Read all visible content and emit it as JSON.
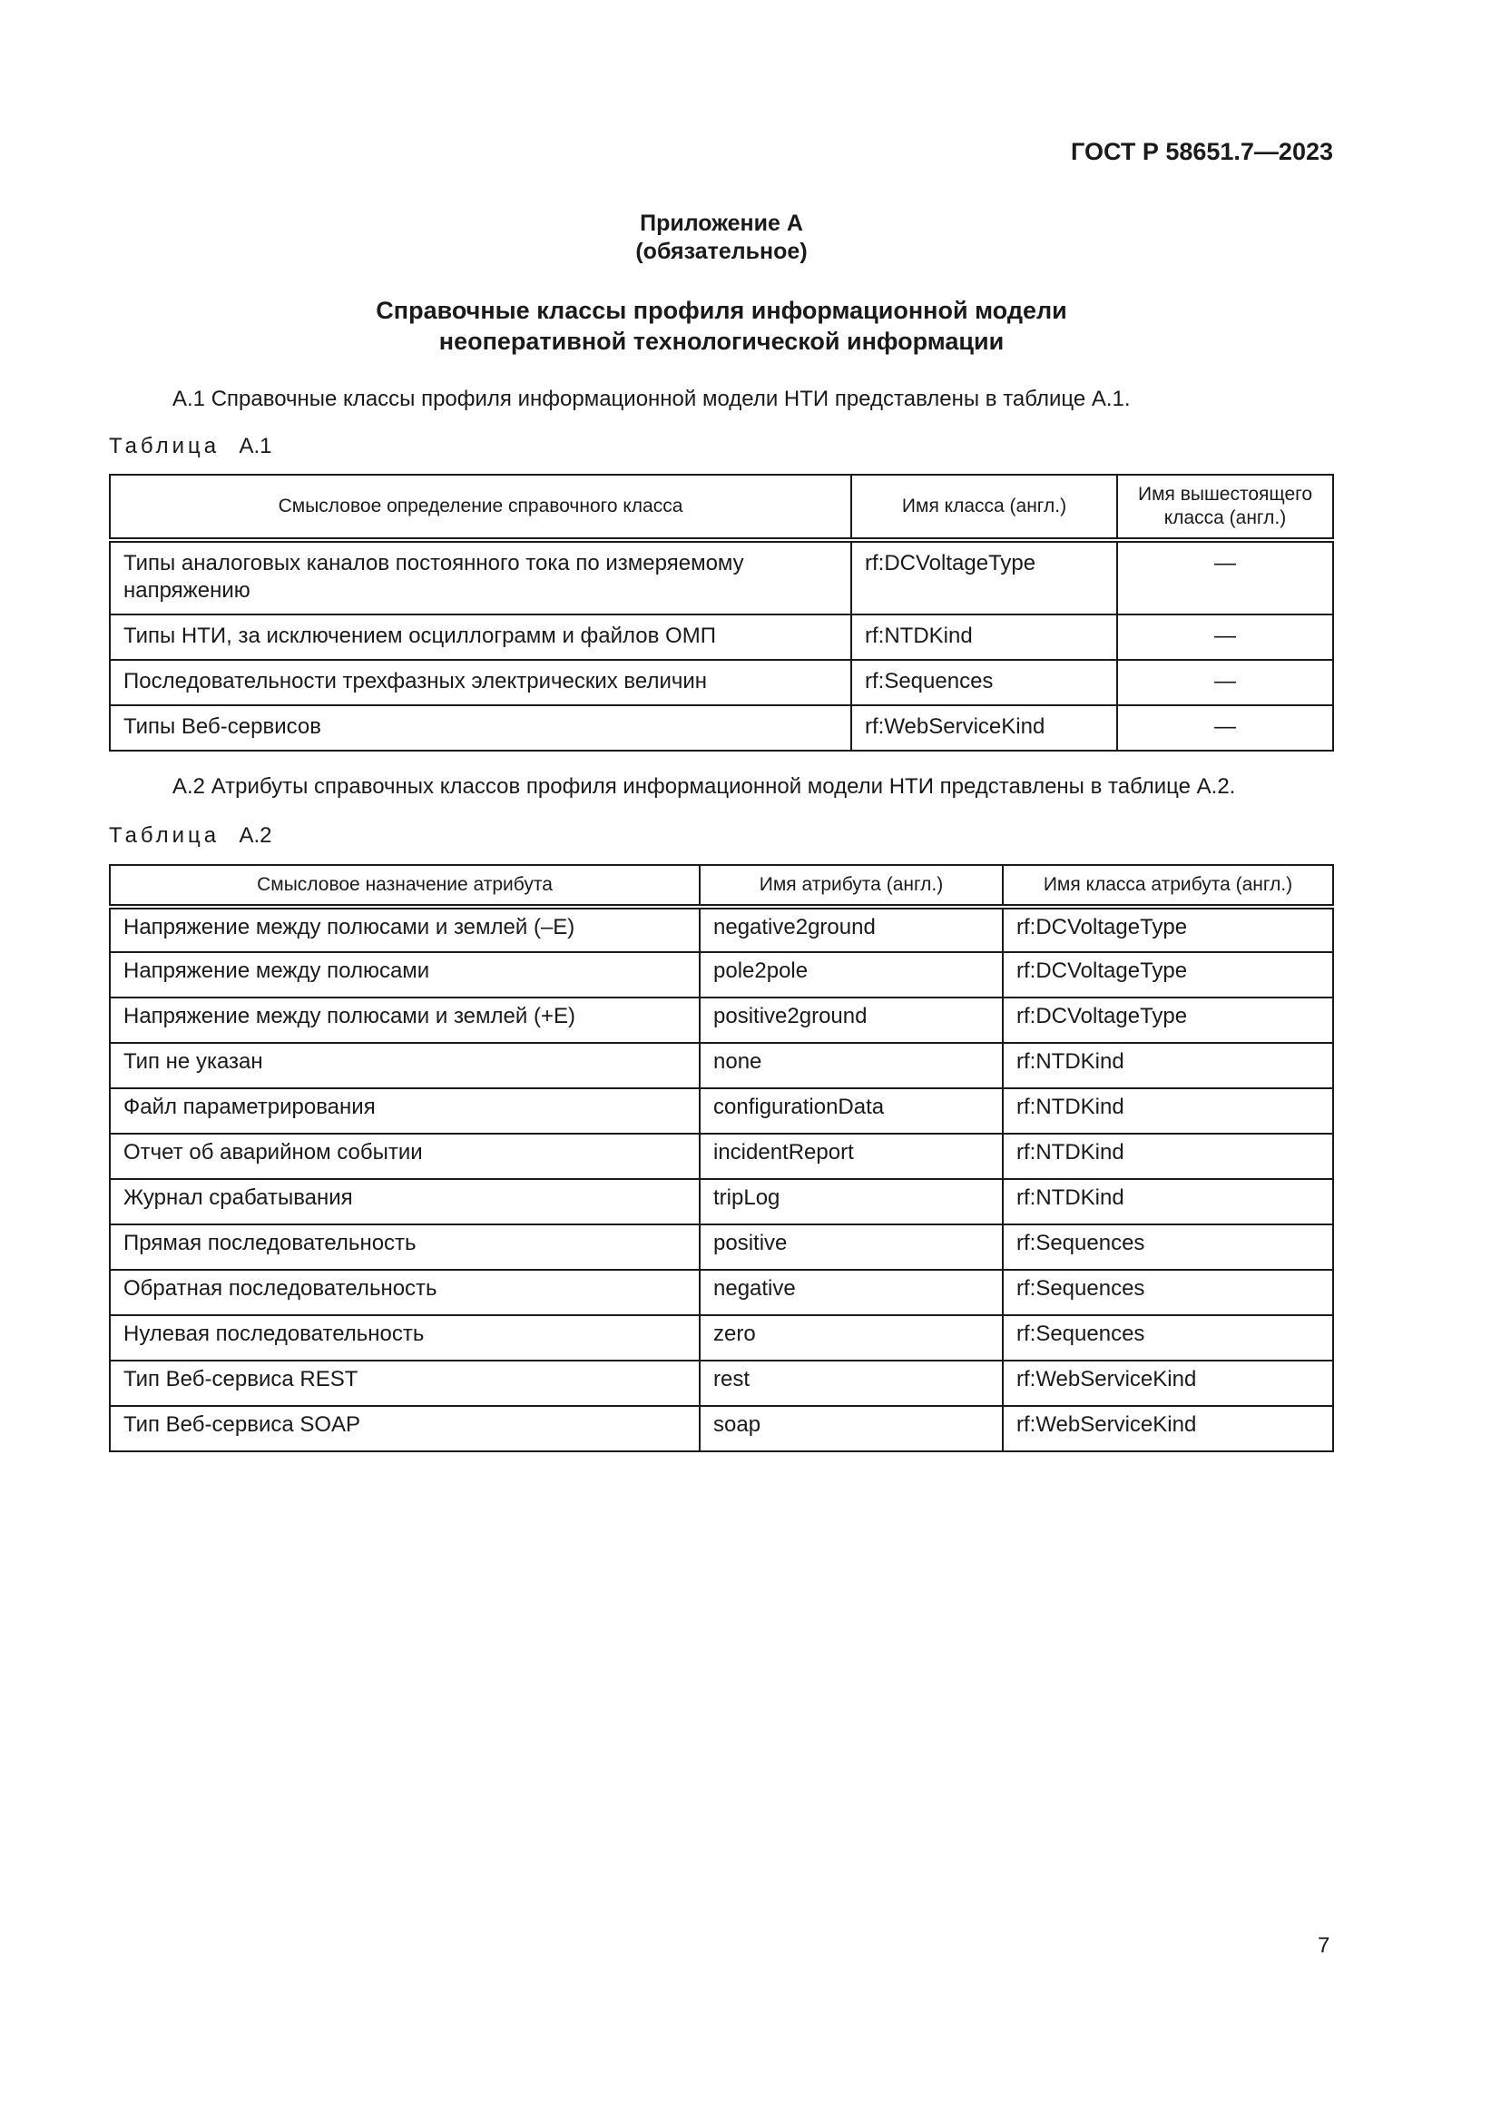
{
  "header": {
    "standard": "ГОСТ Р 58651.7—2023"
  },
  "appendix": {
    "title": "Приложение А",
    "status": "(обязательное)"
  },
  "heading": {
    "line1": "Справочные классы профиля информационной модели",
    "line2": "неоперативной технологической информации"
  },
  "para_a1": "А.1 Справочные классы профиля информационной модели НТИ представлены в таблице А.1.",
  "table_a1": {
    "caption_word": "Таблица",
    "caption_num": "А.1",
    "headers": [
      "Смысловое определение справочного класса",
      "Имя класса (англ.)",
      "Имя вышестоящего класса (англ.)"
    ],
    "rows": [
      [
        "Типы аналоговых каналов постоянного тока по измеряемому напряжению",
        "rf:DCVoltageType",
        "—"
      ],
      [
        "Типы НТИ, за исключением осциллограмм и файлов ОМП",
        "rf:NTDKind",
        "—"
      ],
      [
        "Последовательности трехфазных электрических величин",
        "rf:Sequences",
        "—"
      ],
      [
        "Типы Веб-сервисов",
        "rf:WebServiceKind",
        "—"
      ]
    ]
  },
  "para_a2": "А.2 Атрибуты справочных классов профиля информационной модели НТИ представлены в таблице А.2.",
  "table_a2": {
    "caption_word": "Таблица",
    "caption_num": "А.2",
    "headers": [
      "Смысловое назначение атрибута",
      "Имя атрибута (англ.)",
      "Имя класса атрибута (англ.)"
    ],
    "rows": [
      [
        "Напряжение между полюсами и землей (–Е)",
        "negative2ground",
        "rf:DCVoltageType"
      ],
      [
        "Напряжение между полюсами",
        "pole2pole",
        "rf:DCVoltageType"
      ],
      [
        "Напряжение между полюсами и землей (+Е)",
        "positive2ground",
        "rf:DCVoltageType"
      ],
      [
        "Тип не указан",
        "none",
        "rf:NTDKind"
      ],
      [
        "Файл параметрирования",
        "configurationData",
        "rf:NTDKind"
      ],
      [
        "Отчет об аварийном событии",
        "incidentReport",
        "rf:NTDKind"
      ],
      [
        "Журнал срабатывания",
        "tripLog",
        "rf:NTDKind"
      ],
      [
        "Прямая последовательность",
        "positive",
        "rf:Sequences"
      ],
      [
        "Обратная последовательность",
        "negative",
        "rf:Sequences"
      ],
      [
        "Нулевая последовательность",
        "zero",
        "rf:Sequences"
      ],
      [
        "Тип Веб-сервиса REST",
        "rest",
        "rf:WebServiceKind"
      ],
      [
        "Тип Веб-сервиса SOAP",
        "soap",
        "rf:WebServiceKind"
      ]
    ]
  },
  "page_number": "7"
}
